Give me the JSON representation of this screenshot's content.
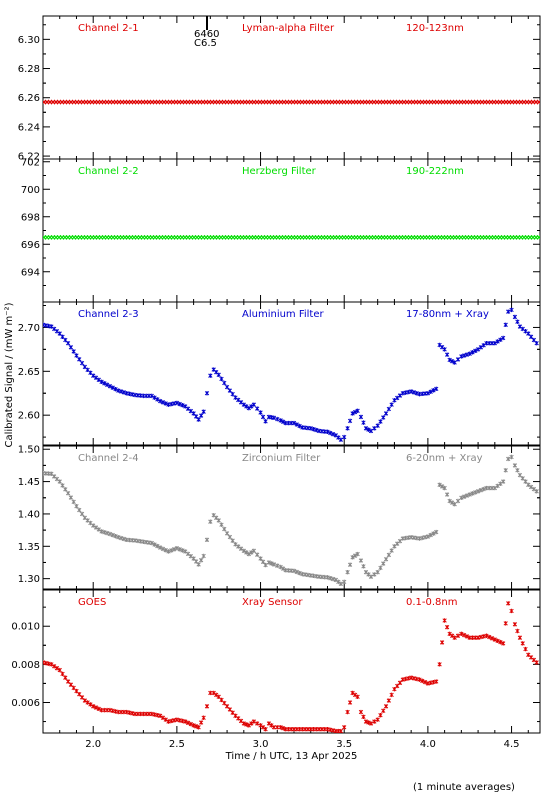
{
  "x_label": "Time / h UTC, 13 Apr 2025",
  "y_label": "Calibrated Signal / (mW m⁻²)",
  "footnote": "(1 minute averages)",
  "flare_marker": {
    "time": 2.68,
    "line1": "6460",
    "line2": "C6.5"
  },
  "chart_data": [
    {
      "type": "scatter",
      "channel": "Channel 2-1",
      "filter": "Lyman-alpha Filter",
      "band": "120-123nm",
      "color": "#dd0000",
      "xlim": [
        1.7,
        4.67
      ],
      "ylim": [
        6.218,
        6.316
      ],
      "yticks": [
        6.22,
        6.24,
        6.26,
        6.28,
        6.3
      ],
      "yticklabels": [
        "6.22",
        "6.24",
        "6.26",
        "6.28",
        "6.30"
      ],
      "points": [
        [
          1.7,
          6.257
        ],
        [
          4.67,
          6.257
        ]
      ]
    },
    {
      "type": "scatter",
      "channel": "Channel 2-2",
      "filter": "Herzberg Filter",
      "band": "190-222nm",
      "color": "#00dd00",
      "xlim": [
        1.7,
        4.67
      ],
      "ylim": [
        691.8,
        702.2
      ],
      "yticks": [
        694,
        696,
        698,
        700,
        702
      ],
      "yticklabels": [
        "694",
        "696",
        "698",
        "700",
        "702"
      ],
      "points": [
        [
          1.7,
          696.5
        ],
        [
          4.67,
          696.5
        ]
      ]
    },
    {
      "type": "scatter",
      "channel": "Channel 2-3",
      "filter": "Aluminium Filter",
      "band": "17-80nm + Xray",
      "color": "#0000cc",
      "xlim": [
        1.7,
        4.67
      ],
      "ylim": [
        2.566,
        2.729
      ],
      "yticks": [
        2.6,
        2.65,
        2.7
      ],
      "yticklabels": [
        "2.60",
        "2.65",
        "2.70"
      ],
      "points": [
        [
          1.7,
          2.703
        ],
        [
          1.75,
          2.701
        ],
        [
          1.8,
          2.693
        ],
        [
          1.85,
          2.682
        ],
        [
          1.9,
          2.668
        ],
        [
          1.95,
          2.655
        ],
        [
          2.0,
          2.645
        ],
        [
          2.05,
          2.638
        ],
        [
          2.1,
          2.633
        ],
        [
          2.15,
          2.628
        ],
        [
          2.2,
          2.625
        ],
        [
          2.25,
          2.623
        ],
        [
          2.3,
          2.622
        ],
        [
          2.35,
          2.622
        ],
        [
          2.4,
          2.616
        ],
        [
          2.45,
          2.612
        ],
        [
          2.5,
          2.614
        ],
        [
          2.55,
          2.61
        ],
        [
          2.6,
          2.602
        ],
        [
          2.63,
          2.595
        ],
        [
          2.66,
          2.604
        ],
        [
          2.68,
          2.625
        ],
        [
          2.7,
          2.645
        ],
        [
          2.72,
          2.652
        ],
        [
          2.75,
          2.646
        ],
        [
          2.8,
          2.632
        ],
        [
          2.85,
          2.62
        ],
        [
          2.9,
          2.612
        ],
        [
          2.93,
          2.608
        ],
        [
          2.96,
          2.612
        ],
        [
          3.0,
          2.603
        ],
        [
          3.03,
          2.593
        ],
        [
          3.05,
          2.598
        ],
        [
          3.08,
          2.597
        ],
        [
          3.12,
          2.594
        ],
        [
          3.15,
          2.591
        ],
        [
          3.2,
          2.591
        ],
        [
          3.25,
          2.586
        ],
        [
          3.3,
          2.585
        ],
        [
          3.35,
          2.582
        ],
        [
          3.4,
          2.581
        ],
        [
          3.45,
          2.577
        ],
        [
          3.48,
          2.572
        ],
        [
          3.5,
          2.575
        ],
        [
          3.52,
          2.585
        ],
        [
          3.55,
          2.602
        ],
        [
          3.58,
          2.605
        ],
        [
          3.6,
          2.598
        ],
        [
          3.63,
          2.585
        ],
        [
          3.66,
          2.582
        ],
        [
          3.7,
          2.588
        ],
        [
          3.75,
          2.602
        ],
        [
          3.8,
          2.617
        ],
        [
          3.85,
          2.625
        ],
        [
          3.9,
          2.627
        ],
        [
          3.95,
          2.624
        ],
        [
          4.0,
          2.625
        ],
        [
          4.05,
          2.63
        ],
        [
          4.07,
          2.68
        ],
        [
          4.1,
          2.675
        ],
        [
          4.13,
          2.663
        ],
        [
          4.16,
          2.66
        ],
        [
          4.2,
          2.667
        ],
        [
          4.25,
          2.67
        ],
        [
          4.3,
          2.675
        ],
        [
          4.35,
          2.682
        ],
        [
          4.4,
          2.682
        ],
        [
          4.45,
          2.688
        ],
        [
          4.48,
          2.718
        ],
        [
          4.5,
          2.72
        ],
        [
          4.52,
          2.712
        ],
        [
          4.55,
          2.701
        ],
        [
          4.6,
          2.693
        ],
        [
          4.65,
          2.682
        ],
        [
          4.67,
          2.676
        ]
      ]
    },
    {
      "type": "scatter",
      "channel": "Channel 2-4",
      "filter": "Zirconium Filter",
      "band": "6-20nm + Xray",
      "color": "#888888",
      "xlim": [
        1.7,
        4.67
      ],
      "ylim": [
        1.284,
        1.505
      ],
      "yticks": [
        1.3,
        1.35,
        1.4,
        1.45,
        1.5
      ],
      "yticklabels": [
        "1.30",
        "1.35",
        "1.40",
        "1.45",
        "1.50"
      ],
      "points": [
        [
          1.7,
          1.463
        ],
        [
          1.75,
          1.462
        ],
        [
          1.8,
          1.45
        ],
        [
          1.85,
          1.432
        ],
        [
          1.9,
          1.412
        ],
        [
          1.95,
          1.394
        ],
        [
          2.0,
          1.382
        ],
        [
          2.05,
          1.373
        ],
        [
          2.1,
          1.369
        ],
        [
          2.15,
          1.364
        ],
        [
          2.2,
          1.36
        ],
        [
          2.25,
          1.359
        ],
        [
          2.3,
          1.357
        ],
        [
          2.35,
          1.355
        ],
        [
          2.4,
          1.348
        ],
        [
          2.45,
          1.342
        ],
        [
          2.5,
          1.347
        ],
        [
          2.55,
          1.342
        ],
        [
          2.6,
          1.331
        ],
        [
          2.63,
          1.322
        ],
        [
          2.66,
          1.335
        ],
        [
          2.68,
          1.36
        ],
        [
          2.7,
          1.388
        ],
        [
          2.72,
          1.398
        ],
        [
          2.75,
          1.39
        ],
        [
          2.8,
          1.37
        ],
        [
          2.85,
          1.353
        ],
        [
          2.9,
          1.343
        ],
        [
          2.93,
          1.338
        ],
        [
          2.96,
          1.343
        ],
        [
          3.0,
          1.331
        ],
        [
          3.03,
          1.321
        ],
        [
          3.05,
          1.325
        ],
        [
          3.08,
          1.322
        ],
        [
          3.12,
          1.318
        ],
        [
          3.15,
          1.313
        ],
        [
          3.2,
          1.312
        ],
        [
          3.25,
          1.307
        ],
        [
          3.3,
          1.305
        ],
        [
          3.35,
          1.303
        ],
        [
          3.4,
          1.302
        ],
        [
          3.45,
          1.298
        ],
        [
          3.48,
          1.292
        ],
        [
          3.5,
          1.295
        ],
        [
          3.52,
          1.31
        ],
        [
          3.55,
          1.333
        ],
        [
          3.58,
          1.338
        ],
        [
          3.6,
          1.328
        ],
        [
          3.63,
          1.31
        ],
        [
          3.66,
          1.303
        ],
        [
          3.7,
          1.31
        ],
        [
          3.75,
          1.33
        ],
        [
          3.8,
          1.35
        ],
        [
          3.85,
          1.362
        ],
        [
          3.9,
          1.364
        ],
        [
          3.95,
          1.362
        ],
        [
          4.0,
          1.365
        ],
        [
          4.05,
          1.372
        ],
        [
          4.07,
          1.445
        ],
        [
          4.1,
          1.44
        ],
        [
          4.13,
          1.42
        ],
        [
          4.16,
          1.415
        ],
        [
          4.2,
          1.425
        ],
        [
          4.25,
          1.43
        ],
        [
          4.3,
          1.435
        ],
        [
          4.35,
          1.44
        ],
        [
          4.4,
          1.44
        ],
        [
          4.45,
          1.45
        ],
        [
          4.48,
          1.485
        ],
        [
          4.5,
          1.488
        ],
        [
          4.52,
          1.475
        ],
        [
          4.55,
          1.46
        ],
        [
          4.6,
          1.445
        ],
        [
          4.65,
          1.435
        ],
        [
          4.67,
          1.428
        ]
      ]
    },
    {
      "type": "scatter",
      "channel": "GOES",
      "filter": "Xray Sensor",
      "band": "0.1-0.8nm",
      "color": "#dd0000",
      "xlim": [
        1.7,
        4.67
      ],
      "ylim": [
        0.0044,
        0.0119
      ],
      "yticks": [
        0.006,
        0.008,
        0.01
      ],
      "yticklabels": [
        "0.006",
        "0.008",
        "0.010"
      ],
      "xticks": [
        2.0,
        2.5,
        3.0,
        3.5,
        4.0,
        4.5
      ],
      "xticklabels": [
        "2.0",
        "2.5",
        "3.0",
        "3.5",
        "4.0",
        "4.5"
      ],
      "points": [
        [
          1.7,
          0.0081
        ],
        [
          1.75,
          0.008
        ],
        [
          1.8,
          0.0077
        ],
        [
          1.85,
          0.0071
        ],
        [
          1.9,
          0.0066
        ],
        [
          1.95,
          0.0061
        ],
        [
          2.0,
          0.0058
        ],
        [
          2.05,
          0.0056
        ],
        [
          2.1,
          0.0056
        ],
        [
          2.15,
          0.0055
        ],
        [
          2.2,
          0.0055
        ],
        [
          2.25,
          0.0054
        ],
        [
          2.3,
          0.0054
        ],
        [
          2.35,
          0.0054
        ],
        [
          2.4,
          0.0053
        ],
        [
          2.45,
          0.005
        ],
        [
          2.5,
          0.0051
        ],
        [
          2.55,
          0.005
        ],
        [
          2.6,
          0.0048
        ],
        [
          2.63,
          0.0047
        ],
        [
          2.66,
          0.0052
        ],
        [
          2.68,
          0.0058
        ],
        [
          2.7,
          0.0065
        ],
        [
          2.72,
          0.0065
        ],
        [
          2.75,
          0.0063
        ],
        [
          2.8,
          0.0058
        ],
        [
          2.85,
          0.0053
        ],
        [
          2.9,
          0.0049
        ],
        [
          2.93,
          0.0048
        ],
        [
          2.96,
          0.005
        ],
        [
          3.0,
          0.0048
        ],
        [
          3.03,
          0.0046
        ],
        [
          3.05,
          0.0049
        ],
        [
          3.08,
          0.0047
        ],
        [
          3.12,
          0.0047
        ],
        [
          3.15,
          0.0046
        ],
        [
          3.2,
          0.0046
        ],
        [
          3.25,
          0.0046
        ],
        [
          3.3,
          0.0046
        ],
        [
          3.35,
          0.0046
        ],
        [
          3.4,
          0.0046
        ],
        [
          3.45,
          0.0045
        ],
        [
          3.48,
          0.0045
        ],
        [
          3.5,
          0.0047
        ],
        [
          3.52,
          0.0055
        ],
        [
          3.55,
          0.0065
        ],
        [
          3.58,
          0.0063
        ],
        [
          3.6,
          0.0055
        ],
        [
          3.63,
          0.005
        ],
        [
          3.66,
          0.0049
        ],
        [
          3.7,
          0.0051
        ],
        [
          3.75,
          0.0058
        ],
        [
          3.8,
          0.0067
        ],
        [
          3.85,
          0.0072
        ],
        [
          3.9,
          0.0073
        ],
        [
          3.95,
          0.0072
        ],
        [
          4.0,
          0.007
        ],
        [
          4.05,
          0.0071
        ],
        [
          4.07,
          0.008
        ],
        [
          4.1,
          0.0103
        ],
        [
          4.13,
          0.0096
        ],
        [
          4.16,
          0.0094
        ],
        [
          4.2,
          0.0096
        ],
        [
          4.25,
          0.0094
        ],
        [
          4.3,
          0.0094
        ],
        [
          4.35,
          0.0095
        ],
        [
          4.4,
          0.0093
        ],
        [
          4.45,
          0.0091
        ],
        [
          4.48,
          0.0112
        ],
        [
          4.5,
          0.0108
        ],
        [
          4.52,
          0.0101
        ],
        [
          4.55,
          0.0094
        ],
        [
          4.6,
          0.0085
        ],
        [
          4.65,
          0.0081
        ],
        [
          4.67,
          0.0078
        ]
      ]
    }
  ]
}
